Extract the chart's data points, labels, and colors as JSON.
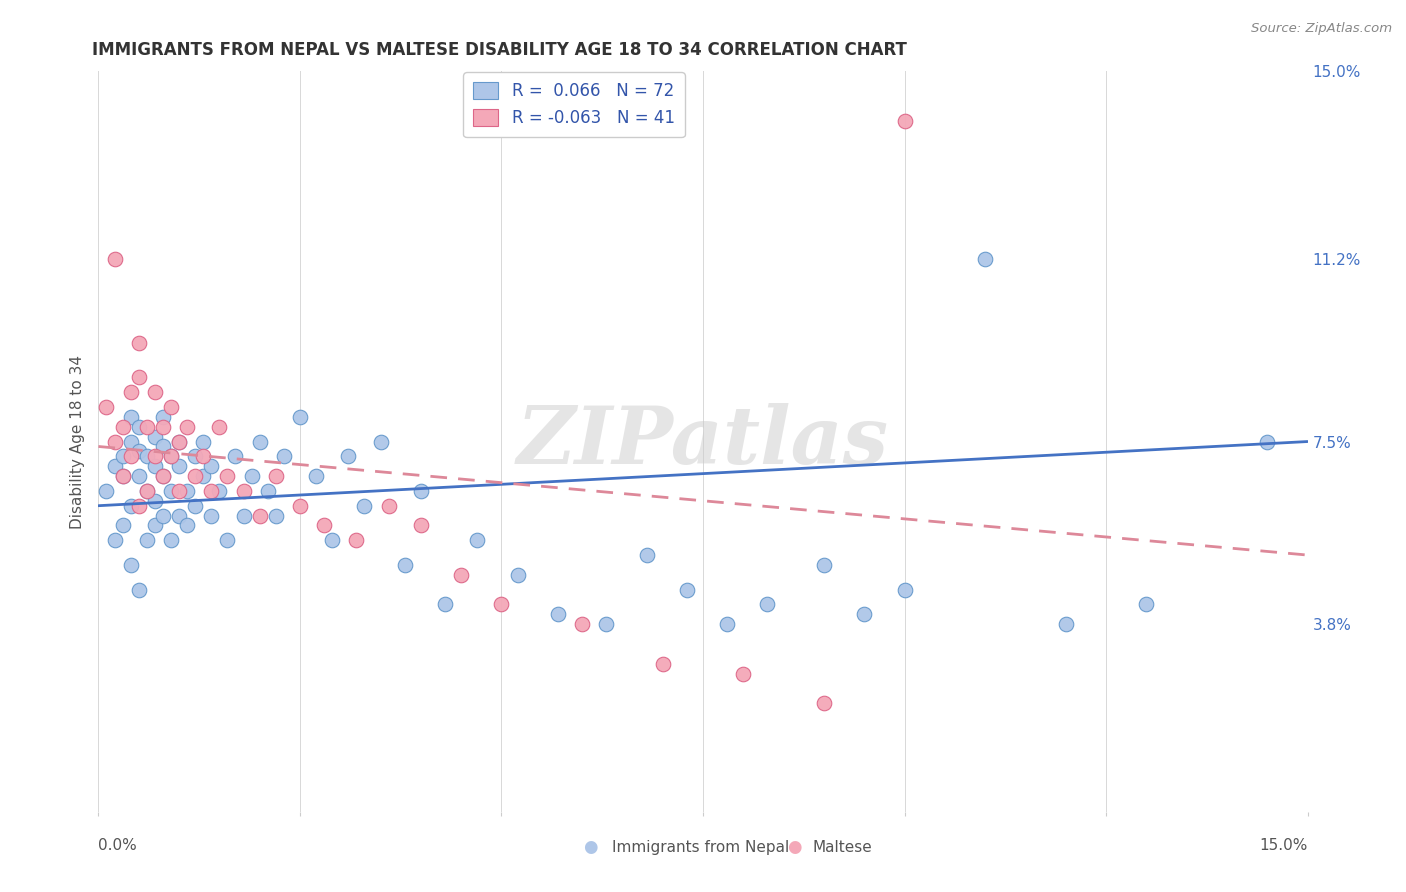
{
  "title": "IMMIGRANTS FROM NEPAL VS MALTESE DISABILITY AGE 18 TO 34 CORRELATION CHART",
  "source": "Source: ZipAtlas.com",
  "ylabel": "Disability Age 18 to 34",
  "right_ytick_vals": [
    0.15,
    0.112,
    0.075,
    0.038
  ],
  "right_ytick_labels": [
    "15.0%",
    "11.2%",
    "7.5%",
    "3.8%"
  ],
  "xmin": 0.0,
  "xmax": 0.15,
  "ymin": 0.0,
  "ymax": 0.15,
  "series1_color": "#aec6e8",
  "series1_edge": "#6699cc",
  "series2_color": "#f4a8b8",
  "series2_edge": "#dd6688",
  "trendline1_color": "#4472c4",
  "trendline2_color": "#dd8899",
  "legend1_r": "0.066",
  "legend1_n": "72",
  "legend2_r": "-0.063",
  "legend2_n": "41",
  "watermark": "ZIPatlas",
  "nepal_x": [
    0.001,
    0.002,
    0.002,
    0.003,
    0.003,
    0.003,
    0.004,
    0.004,
    0.004,
    0.004,
    0.005,
    0.005,
    0.005,
    0.005,
    0.006,
    0.006,
    0.006,
    0.007,
    0.007,
    0.007,
    0.007,
    0.008,
    0.008,
    0.008,
    0.008,
    0.009,
    0.009,
    0.009,
    0.01,
    0.01,
    0.01,
    0.011,
    0.011,
    0.012,
    0.012,
    0.013,
    0.013,
    0.014,
    0.014,
    0.015,
    0.016,
    0.017,
    0.018,
    0.019,
    0.02,
    0.021,
    0.022,
    0.023,
    0.025,
    0.027,
    0.029,
    0.031,
    0.033,
    0.035,
    0.038,
    0.04,
    0.043,
    0.047,
    0.052,
    0.057,
    0.063,
    0.068,
    0.073,
    0.078,
    0.083,
    0.09,
    0.095,
    0.1,
    0.11,
    0.12,
    0.13,
    0.145
  ],
  "nepal_y": [
    0.065,
    0.07,
    0.055,
    0.068,
    0.072,
    0.058,
    0.075,
    0.062,
    0.08,
    0.05,
    0.068,
    0.073,
    0.078,
    0.045,
    0.065,
    0.072,
    0.055,
    0.07,
    0.063,
    0.076,
    0.058,
    0.068,
    0.074,
    0.06,
    0.08,
    0.065,
    0.072,
    0.055,
    0.07,
    0.06,
    0.075,
    0.065,
    0.058,
    0.072,
    0.062,
    0.068,
    0.075,
    0.06,
    0.07,
    0.065,
    0.055,
    0.072,
    0.06,
    0.068,
    0.075,
    0.065,
    0.06,
    0.072,
    0.08,
    0.068,
    0.055,
    0.072,
    0.062,
    0.075,
    0.05,
    0.065,
    0.042,
    0.055,
    0.048,
    0.04,
    0.038,
    0.052,
    0.045,
    0.038,
    0.042,
    0.05,
    0.04,
    0.045,
    0.112,
    0.038,
    0.042,
    0.075
  ],
  "maltese_x": [
    0.001,
    0.002,
    0.002,
    0.003,
    0.003,
    0.004,
    0.004,
    0.005,
    0.005,
    0.005,
    0.006,
    0.006,
    0.007,
    0.007,
    0.008,
    0.008,
    0.009,
    0.009,
    0.01,
    0.01,
    0.011,
    0.012,
    0.013,
    0.014,
    0.015,
    0.016,
    0.018,
    0.02,
    0.022,
    0.025,
    0.028,
    0.032,
    0.036,
    0.04,
    0.045,
    0.05,
    0.06,
    0.07,
    0.08,
    0.09,
    0.1
  ],
  "maltese_y": [
    0.082,
    0.075,
    0.112,
    0.078,
    0.068,
    0.085,
    0.072,
    0.088,
    0.095,
    0.062,
    0.078,
    0.065,
    0.085,
    0.072,
    0.078,
    0.068,
    0.082,
    0.072,
    0.075,
    0.065,
    0.078,
    0.068,
    0.072,
    0.065,
    0.078,
    0.068,
    0.065,
    0.06,
    0.068,
    0.062,
    0.058,
    0.055,
    0.062,
    0.058,
    0.048,
    0.042,
    0.038,
    0.03,
    0.028,
    0.022,
    0.14
  ],
  "nepal_trend_x0": 0.0,
  "nepal_trend_x1": 0.15,
  "nepal_trend_y0": 0.062,
  "nepal_trend_y1": 0.075,
  "maltese_trend_x0": 0.0,
  "maltese_trend_x1": 0.15,
  "maltese_trend_y0": 0.074,
  "maltese_trend_y1": 0.052
}
